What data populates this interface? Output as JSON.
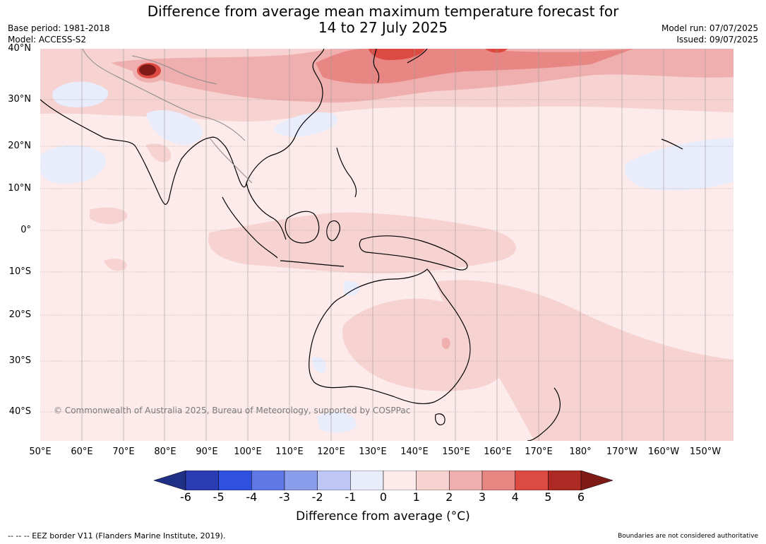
{
  "title_line1": "Difference from average mean maximum temperature forecast for",
  "title_line2": "14 to 27 July 2025",
  "meta_left": [
    "Base period: 1981-2018",
    "Model: ACCESS-S2"
  ],
  "meta_right": [
    "Model run: 07/07/2025",
    "Issued: 09/07/2025"
  ],
  "lat_labels": [
    "40°N",
    "30°N",
    "20°N",
    "10°N",
    "0°",
    "10°S",
    "20°S",
    "30°S",
    "40°S"
  ],
  "lon_labels": [
    "50°E",
    "60°E",
    "70°E",
    "80°E",
    "90°E",
    "100°E",
    "110°E",
    "120°E",
    "130°E",
    "140°E",
    "150°E",
    "160°E",
    "170°E",
    "180°",
    "170°W",
    "160°W",
    "150°W"
  ],
  "copyright": "© Commonwealth of Australia 2025, Bureau of Meteorology, supported by COSPPac",
  "colorbar": {
    "ticks": [
      "-6",
      "-5",
      "-4",
      "-3",
      "-2",
      "-1",
      "0",
      "1",
      "2",
      "3",
      "4",
      "5",
      "6"
    ],
    "colors": [
      "#1f2f86",
      "#2a3cb2",
      "#3050e0",
      "#5f78e6",
      "#8a9cec",
      "#bdc6f4",
      "#e8ecfb",
      "#fcebea",
      "#f6d2d1",
      "#efafae",
      "#e88684",
      "#dc4a42",
      "#ad2a24",
      "#7e1a18"
    ],
    "label": "Difference from average (°C)"
  },
  "footer_left": "-- -- -- EEZ border V11 (Flanders Marine Institute, 2019).",
  "footer_right": "Boundaries are not considered authoritative"
}
